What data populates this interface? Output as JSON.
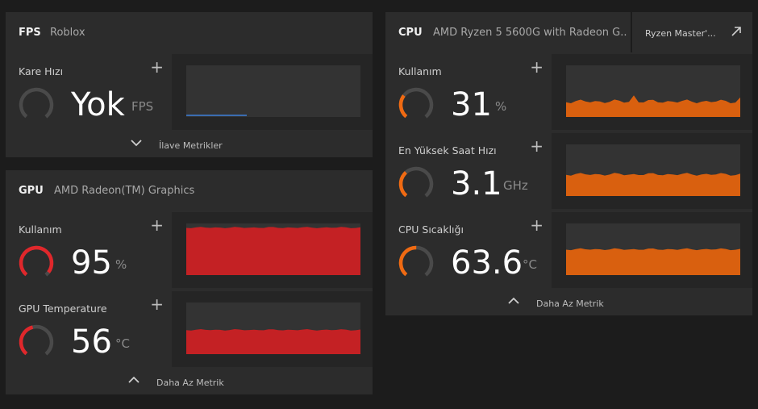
{
  "fps": {
    "title": "FPS",
    "subtitle": "Roblox",
    "metric": {
      "label": "Kare Hızı",
      "value": "Yok",
      "unit": "FPS",
      "gauge_level": 0
    },
    "footer": "İlave Metrikler"
  },
  "gpu": {
    "title": "GPU",
    "subtitle": "AMD Radeon(TM) Graphics",
    "metrics": [
      {
        "label": "Kullanım",
        "value": "95",
        "unit": "%",
        "gauge_level": 0.95,
        "graph_level": 0.92
      },
      {
        "label": "GPU Temperature",
        "value": "56",
        "unit": "°C",
        "gauge_level": 0.45,
        "graph_level": 0.47
      }
    ],
    "footer": "Daha Az Metrik"
  },
  "cpu": {
    "title": "CPU",
    "subtitle": "AMD Ryzen 5 5600G with Radeon G...",
    "ryzen_master": "Ryzen Master'...",
    "metrics": [
      {
        "label": "Kullanım",
        "value": "31",
        "unit": "%",
        "gauge_level": 0.31,
        "graph_level": 0.3
      },
      {
        "label": "En Yüksek Saat Hızı",
        "value": "3.1",
        "unit": "GHz",
        "gauge_level": 0.35,
        "graph_level": 0.42
      },
      {
        "label": "CPU Sıcaklığı",
        "value": "63.6",
        "unit": "°C",
        "gauge_level": 0.5,
        "graph_level": 0.5
      }
    ],
    "footer": "Daha Az Metrik"
  },
  "colors": {
    "gpu_accent": "#e0272b",
    "gpu_graph": "#c42124",
    "cpu_accent": "#f06a12",
    "cpu_graph": "#d9600f",
    "fps_line": "#3d7fd9",
    "track": "#4a4a4a"
  }
}
